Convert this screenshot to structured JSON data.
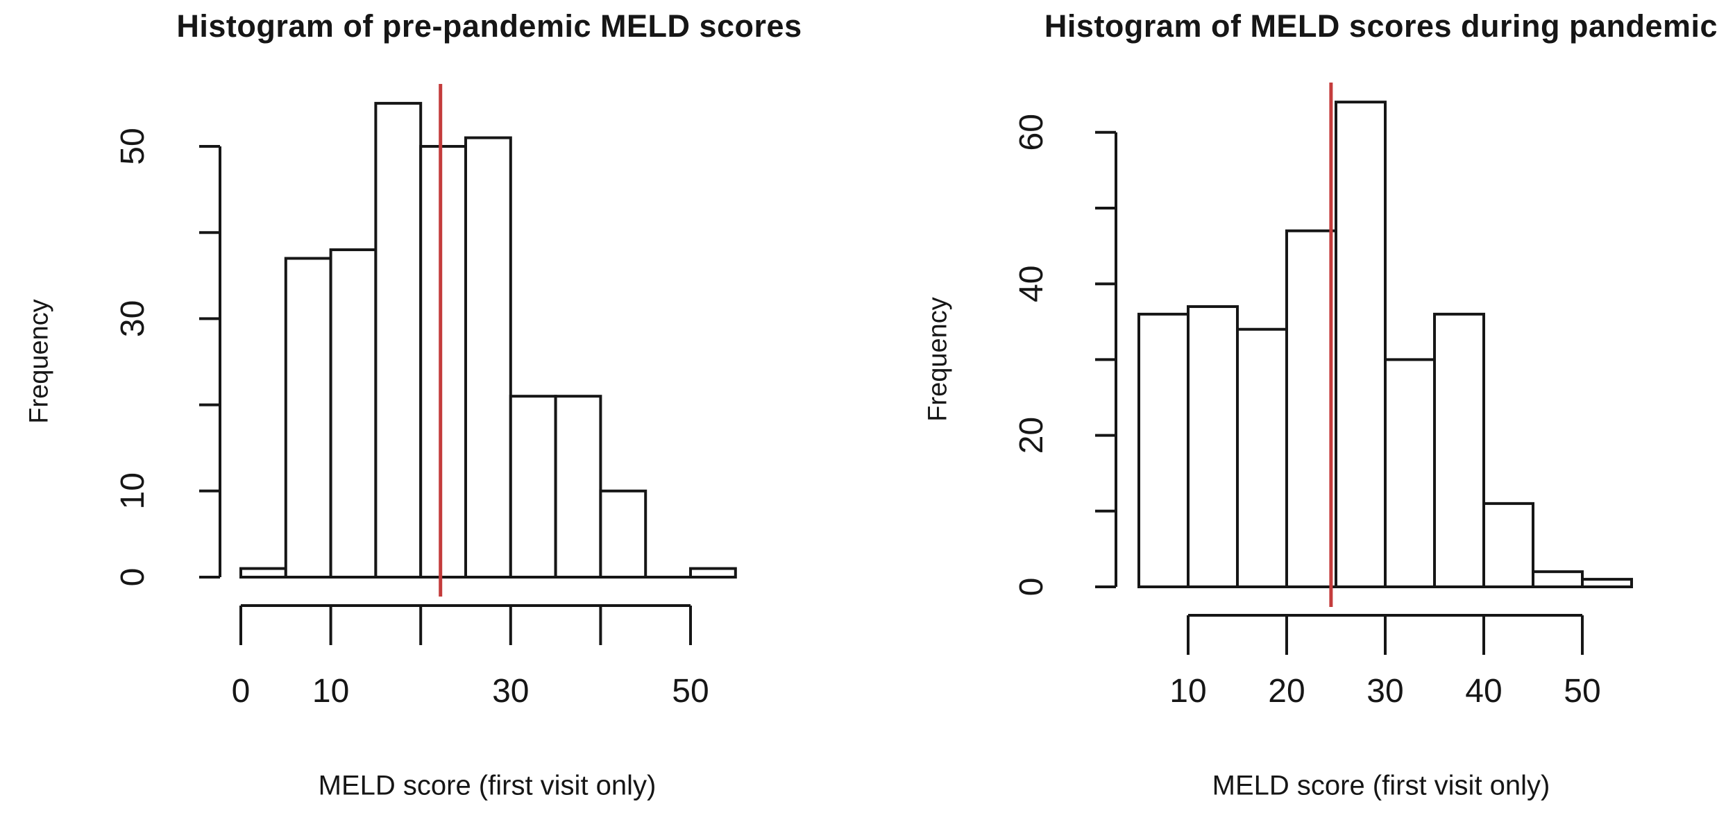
{
  "figure": {
    "background": "#ffffff",
    "colors": {
      "bar_fill": "#ffffff",
      "bar_border": "#161616",
      "axis": "#161616",
      "text": "#161616",
      "mean_line": "#c43c3c"
    }
  },
  "chart_data": [
    {
      "type": "bar",
      "subtype": "histogram",
      "title": "Histogram of pre-pandemic MELD scores",
      "xlabel": "MELD score (first visit only)",
      "ylabel": "Frequency",
      "bin_width": 5,
      "bin_edges": [
        0,
        5,
        10,
        15,
        20,
        25,
        30,
        35,
        40,
        45,
        50,
        55
      ],
      "counts": [
        1,
        37,
        38,
        55,
        50,
        51,
        21,
        21,
        10,
        0,
        1
      ],
      "xlim": [
        0,
        55
      ],
      "ylim": [
        0,
        55
      ],
      "x_ticks": [
        0,
        10,
        20,
        30,
        40,
        50
      ],
      "x_tick_labels": [
        "0",
        "10",
        "",
        "30",
        "",
        "50"
      ],
      "y_ticks": [
        0,
        10,
        20,
        30,
        40,
        50
      ],
      "y_tick_labels": [
        "0",
        "10",
        "",
        "30",
        "",
        "50"
      ],
      "grid": false,
      "legend": "none",
      "mean_line_x": 22.2,
      "mean_line_color": "#c43c3c"
    },
    {
      "type": "bar",
      "subtype": "histogram",
      "title": "Histogram of MELD scores during pandemic",
      "xlabel": "MELD score (first visit only)",
      "ylabel": "Frequency",
      "bin_width": 5,
      "bin_edges": [
        5,
        10,
        15,
        20,
        25,
        30,
        35,
        40,
        45,
        50,
        55
      ],
      "counts": [
        36,
        37,
        34,
        47,
        64,
        30,
        36,
        11,
        2,
        1
      ],
      "xlim": [
        5,
        55
      ],
      "ylim": [
        0,
        64
      ],
      "x_ticks": [
        10,
        20,
        30,
        40,
        50
      ],
      "x_tick_labels": [
        "10",
        "20",
        "30",
        "40",
        "50"
      ],
      "y_ticks": [
        0,
        10,
        20,
        30,
        40,
        50,
        60
      ],
      "y_tick_labels": [
        "0",
        "",
        "20",
        "",
        "40",
        "",
        "60"
      ],
      "grid": false,
      "legend": "none",
      "mean_line_x": 24.5,
      "mean_line_color": "#c43c3c"
    }
  ]
}
